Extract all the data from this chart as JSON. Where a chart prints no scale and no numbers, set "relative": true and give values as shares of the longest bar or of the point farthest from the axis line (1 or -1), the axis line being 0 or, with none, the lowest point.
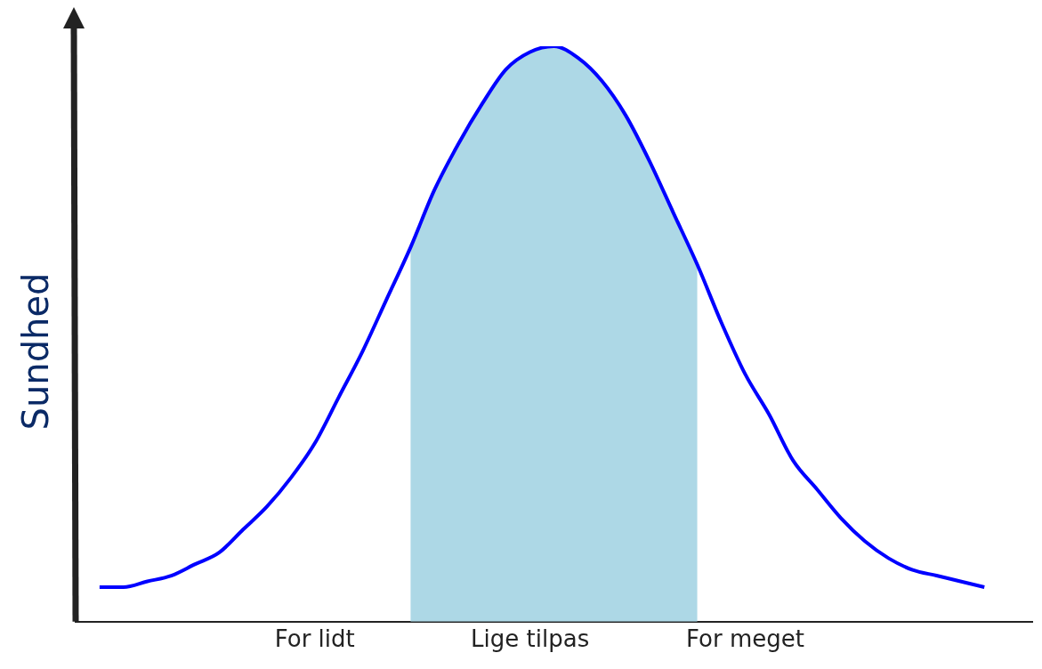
{
  "chart_data": {
    "type": "line",
    "ylabel": "Sundhed",
    "relative": true,
    "legend": false,
    "grid": false,
    "marker": "none",
    "tick_labels": "x",
    "categories": [
      null,
      null,
      null,
      null,
      null,
      null,
      null,
      null,
      null,
      null,
      "For lidt",
      null,
      null,
      null,
      null,
      null,
      null,
      null,
      null,
      "Lige tilpas",
      null,
      null,
      null,
      null,
      null,
      null,
      null,
      null,
      "For meget",
      null,
      null,
      null,
      null,
      null,
      null,
      null,
      null,
      null,
      null,
      null,
      null
    ],
    "series": [
      {
        "type": "area",
        "color": "#add8e6",
        "values": [
          null,
          null,
          null,
          null,
          null,
          null,
          null,
          null,
          null,
          null,
          null,
          null,
          null,
          null,
          0.65,
          0.75,
          0.83,
          0.9,
          0.96,
          0.99,
          1,
          0.98,
          0.94,
          0.88,
          0.8,
          0.71,
          0.62,
          null,
          null,
          null,
          null,
          null,
          null,
          null,
          null,
          null,
          null,
          null,
          null,
          null,
          null
        ]
      },
      {
        "color": "#0000ff",
        "values": [
          null,
          0.06,
          0.06,
          0.07,
          0.08,
          0.1,
          0.12,
          0.16,
          0.2,
          0.25,
          0.31,
          0.39,
          0.47,
          0.56,
          0.65,
          0.75,
          0.83,
          0.9,
          0.96,
          0.99,
          1,
          0.98,
          0.94,
          0.88,
          0.8,
          0.71,
          0.62,
          0.52,
          0.43,
          0.36,
          0.28,
          0.23,
          0.18,
          0.14,
          0.11,
          0.09,
          0.08,
          0.07,
          0.06,
          null,
          null
        ]
      }
    ]
  }
}
